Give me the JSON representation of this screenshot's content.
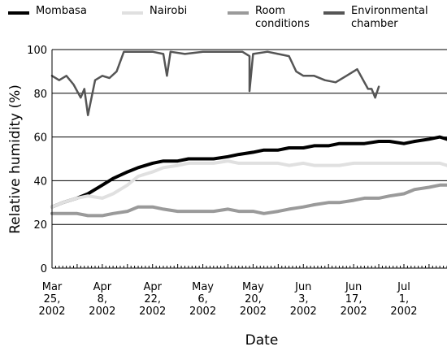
{
  "chart_data": {
    "type": "line",
    "xlabel": "Date",
    "ylabel": "Relative humidity (%)",
    "ylim": [
      0,
      100
    ],
    "yticks": [
      0,
      20,
      40,
      60,
      80,
      100
    ],
    "xlim": [
      "2002-03-25",
      "2002-07-13"
    ],
    "xticks": [
      {
        "date": "2002-03-25",
        "label": "Mar\n25,\n2002"
      },
      {
        "date": "2002-04-08",
        "label": "Apr\n8,\n2002"
      },
      {
        "date": "2002-04-22",
        "label": "Apr\n22,\n2002"
      },
      {
        "date": "2002-05-06",
        "label": "May\n6,\n2002"
      },
      {
        "date": "2002-05-20",
        "label": "May\n20,\n2002"
      },
      {
        "date": "2002-06-03",
        "label": "Jun\n3,\n2002"
      },
      {
        "date": "2002-06-17",
        "label": "Jun\n17,\n2002"
      },
      {
        "date": "2002-07-01",
        "label": "Jul\n1,\n2002"
      }
    ],
    "grid": "horizontal",
    "legend_position": "top",
    "series": [
      {
        "name": "Mombasa",
        "color": "#000000",
        "x": [
          "2002-03-25",
          "2002-03-28",
          "2002-04-01",
          "2002-04-04",
          "2002-04-08",
          "2002-04-11",
          "2002-04-15",
          "2002-04-18",
          "2002-04-22",
          "2002-04-25",
          "2002-04-29",
          "2002-05-02",
          "2002-05-06",
          "2002-05-09",
          "2002-05-13",
          "2002-05-16",
          "2002-05-20",
          "2002-05-23",
          "2002-05-27",
          "2002-05-30",
          "2002-06-03",
          "2002-06-06",
          "2002-06-10",
          "2002-06-13",
          "2002-06-17",
          "2002-06-20",
          "2002-06-24",
          "2002-06-27",
          "2002-07-01",
          "2002-07-04",
          "2002-07-08",
          "2002-07-11",
          "2002-07-13"
        ],
        "y": [
          28,
          30,
          32,
          34,
          38,
          41,
          44,
          46,
          48,
          49,
          49,
          50,
          50,
          50,
          51,
          52,
          53,
          54,
          54,
          55,
          55,
          56,
          56,
          57,
          57,
          57,
          58,
          58,
          57,
          58,
          59,
          60,
          59
        ]
      },
      {
        "name": "Nairobi",
        "color": "#e0e0e0",
        "x": [
          "2002-03-25",
          "2002-03-28",
          "2002-04-01",
          "2002-04-04",
          "2002-04-08",
          "2002-04-11",
          "2002-04-15",
          "2002-04-18",
          "2002-04-22",
          "2002-04-25",
          "2002-04-29",
          "2002-05-02",
          "2002-05-06",
          "2002-05-09",
          "2002-05-13",
          "2002-05-16",
          "2002-05-20",
          "2002-05-23",
          "2002-05-27",
          "2002-05-30",
          "2002-06-03",
          "2002-06-06",
          "2002-06-10",
          "2002-06-13",
          "2002-06-17",
          "2002-06-20",
          "2002-06-24",
          "2002-06-27",
          "2002-07-01",
          "2002-07-04",
          "2002-07-08",
          "2002-07-11",
          "2002-07-13"
        ],
        "y": [
          28,
          30,
          32,
          33,
          32,
          34,
          38,
          42,
          44,
          46,
          47,
          48,
          48,
          48,
          49,
          48,
          48,
          48,
          48,
          47,
          48,
          47,
          47,
          47,
          48,
          48,
          48,
          48,
          48,
          48,
          48,
          48,
          47
        ]
      },
      {
        "name": "Room\nconditions",
        "color": "#9a9a9a",
        "x": [
          "2002-03-25",
          "2002-03-28",
          "2002-04-01",
          "2002-04-04",
          "2002-04-08",
          "2002-04-11",
          "2002-04-15",
          "2002-04-18",
          "2002-04-22",
          "2002-04-25",
          "2002-04-29",
          "2002-05-02",
          "2002-05-06",
          "2002-05-09",
          "2002-05-13",
          "2002-05-16",
          "2002-05-20",
          "2002-05-23",
          "2002-05-27",
          "2002-05-30",
          "2002-06-03",
          "2002-06-06",
          "2002-06-10",
          "2002-06-13",
          "2002-06-17",
          "2002-06-20",
          "2002-06-24",
          "2002-06-27",
          "2002-07-01",
          "2002-07-04",
          "2002-07-08",
          "2002-07-11",
          "2002-07-13"
        ],
        "y": [
          25,
          25,
          25,
          24,
          24,
          25,
          26,
          28,
          28,
          27,
          26,
          26,
          26,
          26,
          27,
          26,
          26,
          25,
          26,
          27,
          28,
          29,
          30,
          30,
          31,
          32,
          32,
          33,
          34,
          36,
          37,
          38,
          38
        ]
      },
      {
        "name": "Environmental\nchamber",
        "color": "#555555",
        "x": [
          "2002-03-25",
          "2002-03-27",
          "2002-03-29",
          "2002-03-31",
          "2002-04-02",
          "2002-04-03",
          "2002-04-04",
          "2002-04-06",
          "2002-04-08",
          "2002-04-10",
          "2002-04-12",
          "2002-04-14",
          "2002-04-18",
          "2002-04-22",
          "2002-04-25",
          "2002-04-26",
          "2002-04-27",
          "2002-05-01",
          "2002-05-06",
          "2002-05-12",
          "2002-05-17",
          "2002-05-19",
          "2002-05-19",
          "2002-05-20",
          "2002-05-24",
          "2002-05-27",
          "2002-05-30",
          "2002-06-01",
          "2002-06-03",
          "2002-06-06",
          "2002-06-09",
          "2002-06-12",
          "2002-06-15",
          "2002-06-18",
          "2002-06-21",
          "2002-06-22",
          "2002-06-23",
          "2002-06-24"
        ],
        "y": [
          88,
          86,
          88,
          84,
          78,
          82,
          70,
          86,
          88,
          87,
          90,
          99,
          99,
          99,
          98,
          88,
          99,
          98,
          99,
          99,
          99,
          97,
          81,
          98,
          99,
          98,
          97,
          90,
          88,
          88,
          86,
          85,
          88,
          91,
          82,
          82,
          78,
          83
        ]
      }
    ]
  }
}
